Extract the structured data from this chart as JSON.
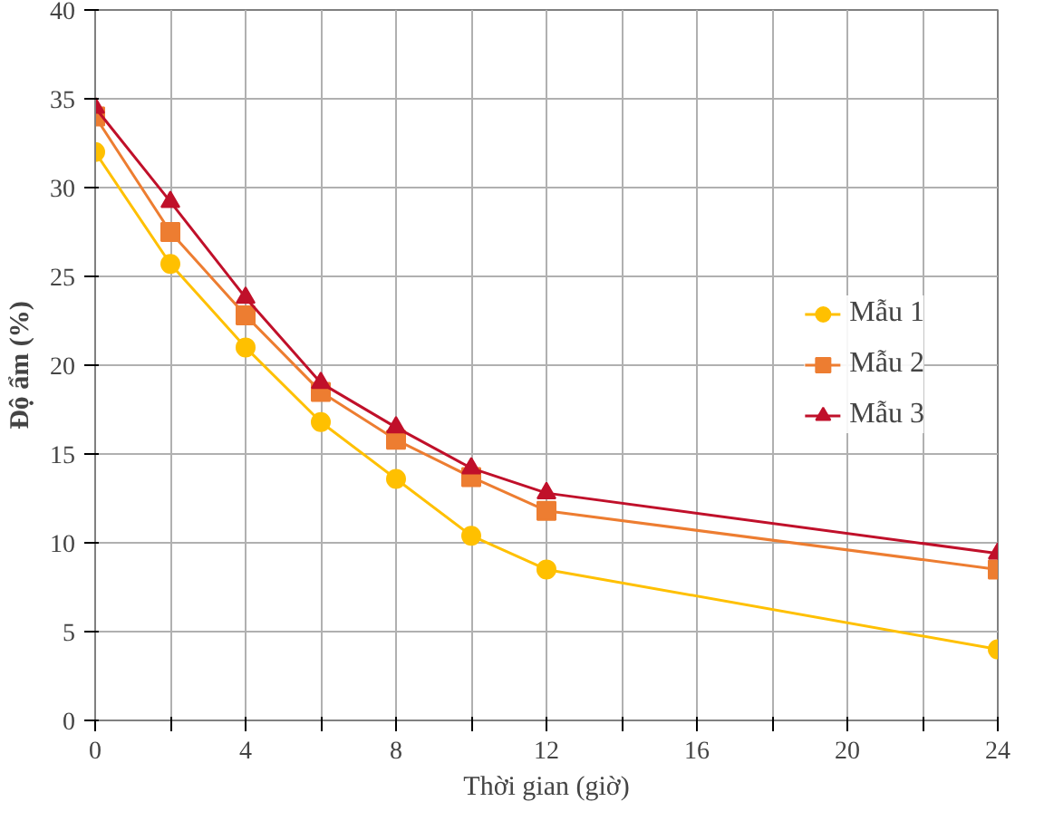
{
  "chart_data": {
    "type": "line",
    "xlabel": "Thời gian (giờ)",
    "ylabel": "Độ ẩm (%)",
    "x": [
      0,
      2,
      4,
      6,
      8,
      10,
      12,
      24
    ],
    "series": [
      {
        "name": "Mẫu 1",
        "color": "#ffc000",
        "marker": "circle",
        "values": [
          32,
          25.7,
          21,
          16.8,
          13.6,
          10.4,
          8.5,
          4
        ]
      },
      {
        "name": "Mẫu 2",
        "color": "#ed7d31",
        "marker": "square",
        "values": [
          34,
          27.5,
          22.8,
          18.5,
          15.8,
          13.7,
          11.8,
          8.5
        ]
      },
      {
        "name": "Mẫu 3",
        "color": "#c0102a",
        "marker": "triangle",
        "values": [
          34.5,
          29.2,
          23.8,
          19,
          16.5,
          14.2,
          12.8,
          9.4
        ]
      }
    ],
    "xlim": [
      0,
      24
    ],
    "ylim": [
      0,
      40
    ],
    "xticks": [
      0,
      {
        "value": 2,
        "label": null
      },
      4,
      {
        "value": 6,
        "label": null
      },
      8,
      {
        "value": 10,
        "label": null
      },
      12,
      {
        "value": 14,
        "label": null
      },
      16,
      {
        "value": 18,
        "label": null
      },
      20,
      {
        "value": 22,
        "label": null
      },
      24
    ],
    "yticks": [
      0,
      5,
      10,
      15,
      20,
      25,
      30,
      35,
      40
    ],
    "grid": true,
    "legend": "right"
  }
}
